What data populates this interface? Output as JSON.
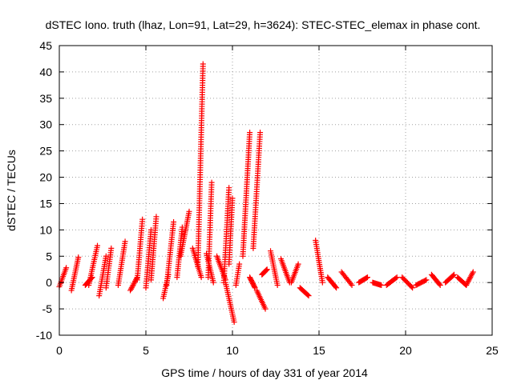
{
  "chart_data": {
    "type": "scatter",
    "title": "dSTEC Iono. truth (lhaz, Lon=91, Lat=29, h=3624): STEC-STEC_elemax in phase cont.",
    "xlabel": "GPS time / hours of day 331 of year 2014",
    "ylabel": "dSTEC  / TECUs",
    "xlim": [
      0,
      25
    ],
    "ylim": [
      -10,
      45
    ],
    "x_ticks": [
      0,
      5,
      10,
      15,
      20,
      25
    ],
    "y_ticks": [
      -10,
      -5,
      0,
      5,
      10,
      15,
      20,
      25,
      30,
      35,
      40,
      45
    ],
    "grid": true,
    "marker": "plus",
    "color": "#ff0000",
    "arcs": [
      [
        0.0,
        0.4,
        -0.8,
        2.8
      ],
      [
        0.7,
        1.1,
        -1.5,
        4.8
      ],
      [
        1.5,
        1.9,
        -0.5,
        1.0
      ],
      [
        1.7,
        2.2,
        -0.5,
        7.0
      ],
      [
        2.3,
        2.7,
        -2.5,
        5.0
      ],
      [
        2.7,
        3.0,
        -1.0,
        6.5
      ],
      [
        3.4,
        3.8,
        -0.5,
        7.8
      ],
      [
        4.1,
        4.5,
        -1.5,
        1.0
      ],
      [
        4.5,
        4.8,
        0.5,
        12.0
      ],
      [
        5.0,
        5.3,
        -1.0,
        10.0
      ],
      [
        5.3,
        5.6,
        0.5,
        12.5
      ],
      [
        6.0,
        6.3,
        -3.0,
        1.5
      ],
      [
        6.2,
        6.6,
        -0.5,
        11.5
      ],
      [
        6.8,
        7.1,
        1.0,
        10.5
      ],
      [
        7.0,
        7.5,
        5.0,
        13.5
      ],
      [
        7.7,
        8.2,
        6.5,
        1.0
      ],
      [
        8.0,
        8.3,
        3.0,
        41.5
      ],
      [
        8.5,
        8.9,
        5.5,
        0.0
      ],
      [
        8.6,
        8.8,
        1.0,
        19.0
      ],
      [
        9.1,
        9.6,
        5.0,
        0.5
      ],
      [
        9.5,
        9.8,
        0.0,
        18.0
      ],
      [
        9.6,
        10.1,
        0.0,
        -7.5
      ],
      [
        9.8,
        10.0,
        3.5,
        16.0
      ],
      [
        10.2,
        10.4,
        -0.5,
        3.5
      ],
      [
        10.6,
        11.0,
        5.0,
        28.5
      ],
      [
        11.0,
        11.3,
        1.0,
        -1.0
      ],
      [
        11.2,
        11.6,
        6.5,
        28.5
      ],
      [
        11.4,
        11.9,
        -1.5,
        -5.0
      ],
      [
        11.7,
        12.0,
        1.5,
        2.5
      ],
      [
        12.2,
        12.6,
        6.0,
        -0.5
      ],
      [
        12.8,
        13.3,
        4.5,
        0.0
      ],
      [
        13.4,
        13.8,
        0.0,
        3.5
      ],
      [
        13.9,
        14.4,
        -1.0,
        -2.5
      ],
      [
        14.8,
        15.2,
        8.0,
        0.0
      ],
      [
        15.5,
        16.0,
        1.0,
        -1.0
      ],
      [
        16.3,
        16.9,
        2.0,
        -0.5
      ],
      [
        17.3,
        17.8,
        0.0,
        1.0
      ],
      [
        18.1,
        18.6,
        0.0,
        -0.5
      ],
      [
        18.9,
        19.5,
        -0.5,
        1.0
      ],
      [
        19.8,
        20.4,
        1.0,
        -1.0
      ],
      [
        20.6,
        21.2,
        -0.5,
        0.5
      ],
      [
        21.5,
        22.0,
        1.5,
        -0.5
      ],
      [
        22.3,
        22.8,
        0.0,
        1.5
      ],
      [
        23.0,
        23.5,
        1.0,
        -0.5
      ],
      [
        23.5,
        23.9,
        -0.5,
        2.0
      ]
    ]
  }
}
